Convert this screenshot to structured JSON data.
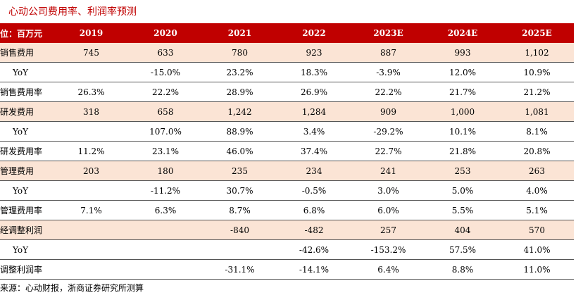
{
  "title": "心动公司费用率、利润率预测",
  "table": {
    "header": [
      "位：百万元",
      "2019",
      "2020",
      "2021",
      "2022",
      "2023E",
      "2024E",
      "2025E"
    ],
    "rows": [
      [
        "销售费用",
        "745",
        "633",
        "780",
        "923",
        "887",
        "993",
        "1,102"
      ],
      [
        "YoY",
        null,
        "-15.0%",
        "23.2%",
        "18.3%",
        "-3.9%",
        "12.0%",
        "10.9%"
      ],
      [
        "销售费用率",
        "26.3%",
        "22.2%",
        "28.9%",
        "26.9%",
        "22.2%",
        "21.7%",
        "21.2%"
      ],
      [
        "研发费用",
        "318",
        "658",
        "1,242",
        "1,284",
        "909",
        "1,000",
        "1,081"
      ],
      [
        "YoY",
        null,
        "107.0%",
        "88.9%",
        "3.4%",
        "-29.2%",
        "10.1%",
        "8.1%"
      ],
      [
        "研发费用率",
        "11.2%",
        "23.1%",
        "46.0%",
        "37.4%",
        "22.7%",
        "21.8%",
        "20.8%"
      ],
      [
        "管理费用",
        "203",
        "180",
        "235",
        "234",
        "241",
        "253",
        "263"
      ],
      [
        "YoY",
        null,
        "-11.2%",
        "30.7%",
        "-0.5%",
        "3.0%",
        "5.0%",
        "4.0%"
      ],
      [
        "管理费用率",
        "7.1%",
        "6.3%",
        "8.7%",
        "6.8%",
        "6.0%",
        "5.5%",
        "5.1%"
      ],
      [
        "经调整利润",
        null,
        null,
        "-840",
        "-482",
        "257",
        "404",
        "570"
      ],
      [
        "YoY",
        null,
        null,
        null,
        "-42.6%",
        "-153.2%",
        "57.5%",
        "41.0%"
      ],
      [
        "调整利润率",
        null,
        null,
        "-31.1%",
        "-14.1%",
        "6.4%",
        "8.8%",
        "11.0%"
      ]
    ]
  },
  "source": "来源：心动财报，浙商证券研究所测算"
}
